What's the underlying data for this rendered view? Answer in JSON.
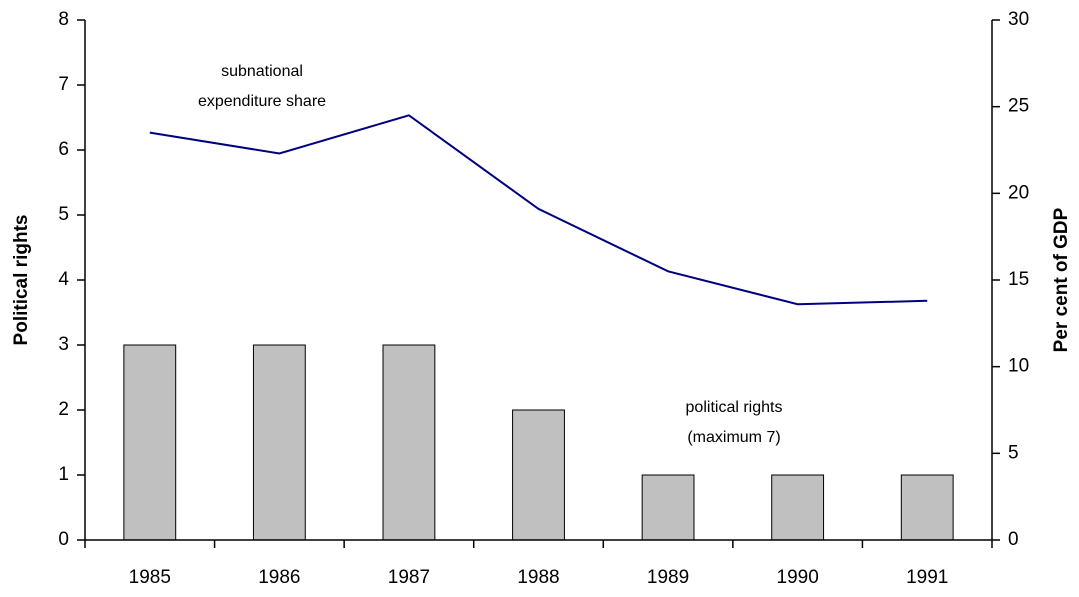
{
  "chart_data": {
    "type": "bar",
    "categories": [
      "1985",
      "1986",
      "1987",
      "1988",
      "1989",
      "1990",
      "1991"
    ],
    "series": [
      {
        "type": "bar",
        "color": "#c0c0c0",
        "values": [
          3,
          3,
          3,
          2,
          1,
          1,
          1
        ]
      },
      {
        "type": "line",
        "axis": "y2",
        "color": "#000080",
        "values": [
          23.5,
          22.3,
          24.5,
          19.1,
          15.5,
          13.6,
          13.8
        ]
      }
    ],
    "ylabel": "Political rights",
    "y2label": "Per cent of GDP",
    "ylim": [
      0,
      8
    ],
    "yticks": [
      0,
      1,
      2,
      3,
      4,
      5,
      6,
      7,
      8
    ],
    "y2lim": [
      0,
      30
    ],
    "y2ticks": [
      0,
      5,
      10,
      15,
      20,
      25,
      30
    ],
    "annotations": [
      {
        "lines": [
          "subnational",
          "expenditure share"
        ]
      },
      {
        "lines": [
          "political rights",
          "(maximum 7)"
        ]
      }
    ],
    "grid": false
  }
}
